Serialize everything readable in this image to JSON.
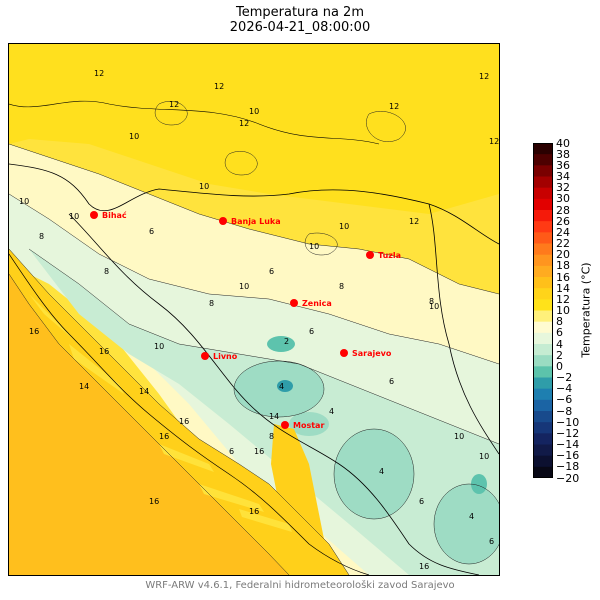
{
  "title": "Temperatura na 2m",
  "subtitle": "2026-04-21_08:00:00",
  "footer": "WRF-ARW v4.6.1, Federalni hidrometeorološki zavod Sarajevo",
  "colorbar": {
    "label": "Temperatura (°C)",
    "ticks": [
      "40",
      "38",
      "36",
      "34",
      "32",
      "30",
      "28",
      "26",
      "24",
      "22",
      "20",
      "18",
      "16",
      "14",
      "12",
      "10",
      "8",
      "6",
      "4",
      "2",
      "0",
      "−2",
      "−4",
      "−6",
      "−8",
      "−10",
      "−12",
      "−14",
      "−16",
      "−18",
      "−20"
    ],
    "colors": [
      "#2a0000",
      "#4d0000",
      "#7a0000",
      "#a30000",
      "#c80000",
      "#e20000",
      "#f51a0a",
      "#ff3a14",
      "#ff5a18",
      "#ff7a1c",
      "#ff951f",
      "#ffab20",
      "#ffc01a",
      "#ffd41a",
      "#ffe21a",
      "#fff07a",
      "#fffbd0",
      "#e7f7dc",
      "#c5ecd2",
      "#9adcc2",
      "#5cc3ab",
      "#2f9da9",
      "#1e7fb0",
      "#1b64a4",
      "#184a8c",
      "#163678",
      "#142460",
      "#111a48",
      "#0c1030",
      "#080816"
    ]
  },
  "cities": [
    {
      "name": "Bihać"
    },
    {
      "name": "Banja Luka"
    },
    {
      "name": "Tuzla"
    },
    {
      "name": "Zenica"
    },
    {
      "name": "Sarajevo"
    },
    {
      "name": "Livno"
    },
    {
      "name": "Mostar"
    }
  ],
  "contour_labels": [
    "12",
    "12",
    "12",
    "12",
    "12",
    "12",
    "12",
    "12",
    "10",
    "10",
    "10",
    "10",
    "10",
    "10",
    "10",
    "10",
    "10",
    "10",
    "10",
    "10",
    "8",
    "8",
    "8",
    "8",
    "8",
    "8",
    "6",
    "6",
    "6",
    "6",
    "6",
    "6",
    "6",
    "4",
    "4",
    "4",
    "4",
    "2",
    "14",
    "14",
    "14",
    "16",
    "16",
    "16",
    "16",
    "16",
    "16",
    "16",
    "16"
  ]
}
